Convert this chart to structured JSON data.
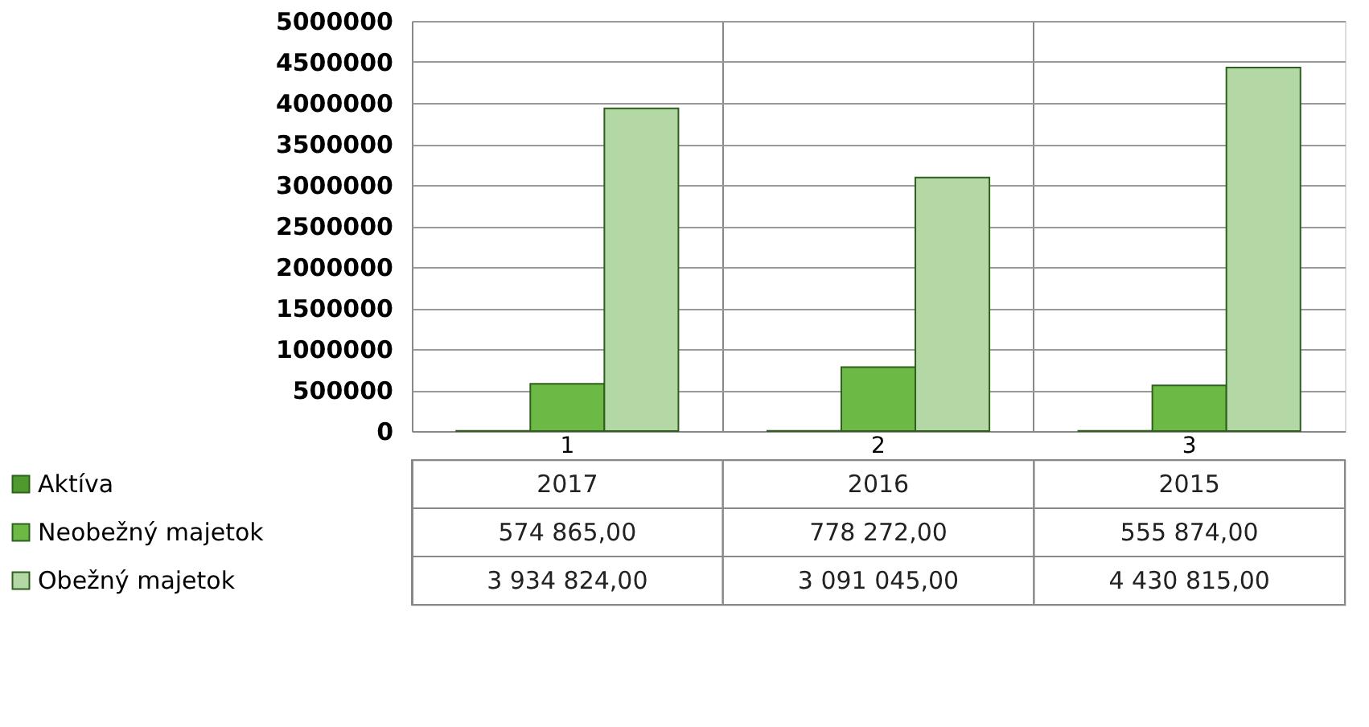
{
  "chart_data": {
    "type": "bar",
    "categories": [
      "1",
      "2",
      "3"
    ],
    "series": [
      {
        "name": "Aktíva",
        "color": "#4e9a2f",
        "values": [
          2017,
          2016,
          2015
        ],
        "value_labels": [
          "2017",
          "2016",
          "2015"
        ]
      },
      {
        "name": "Neobežný majetok",
        "color": "#6cba45",
        "values": [
          574865.0,
          778272.0,
          555874.0
        ],
        "value_labels": [
          "574 865,00",
          "778 272,00",
          "555 874,00"
        ]
      },
      {
        "name": "Obežný majetok",
        "color": "#b3d8a6",
        "values": [
          3934824.0,
          3091045.0,
          4430815.0
        ],
        "value_labels": [
          "3 934 824,00",
          "3 091 045,00",
          "4 430 815,00"
        ]
      }
    ],
    "ylim": [
      0,
      5000000
    ],
    "yticks": [
      0,
      500000,
      1000000,
      1500000,
      2000000,
      2500000,
      3000000,
      3500000,
      4000000,
      4500000,
      5000000
    ],
    "grid": "y",
    "legend": "bottom"
  }
}
